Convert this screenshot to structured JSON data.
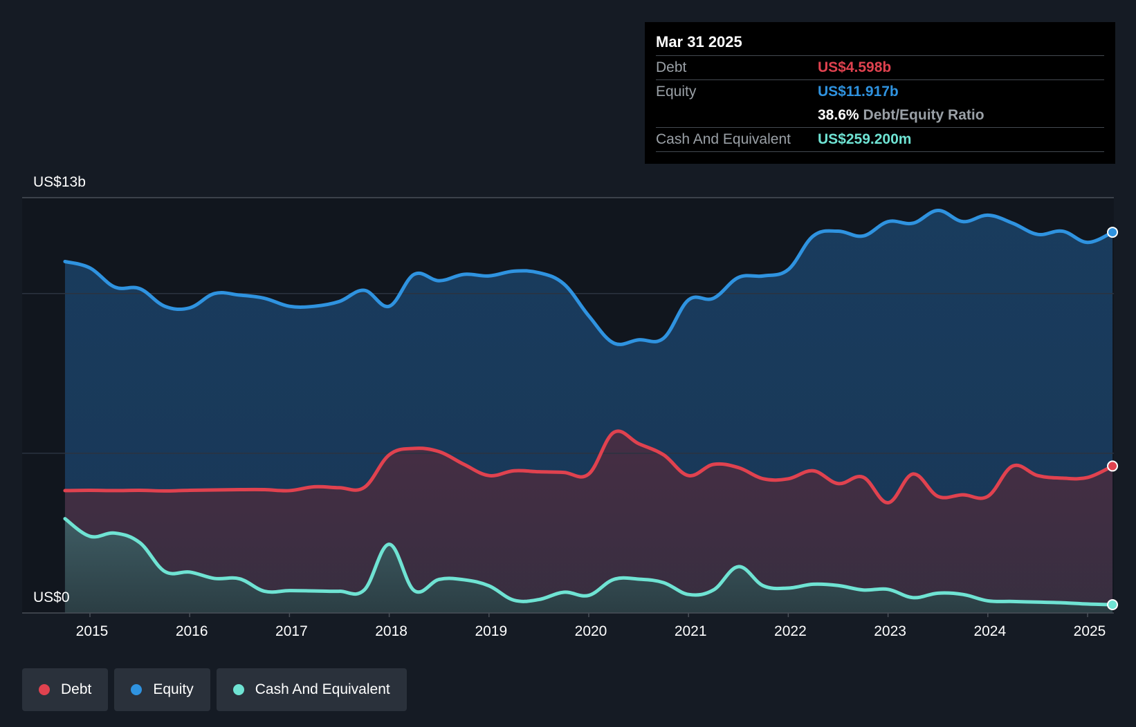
{
  "chart_data": {
    "type": "area",
    "title": "",
    "xlabel": "",
    "ylabel": "",
    "y_axis_labels": [
      "US$13b",
      "US$0"
    ],
    "ylim": [
      0,
      13
    ],
    "xlim": [
      2014.55,
      2025.25
    ],
    "x_ticks": [
      "2015",
      "2016",
      "2017",
      "2018",
      "2019",
      "2020",
      "2021",
      "2022",
      "2023",
      "2024",
      "2025"
    ],
    "gridlines": [
      0,
      5,
      10,
      13
    ],
    "series": [
      {
        "name": "Equity",
        "color": "#2f93e0",
        "points": [
          [
            2014.75,
            11.0
          ],
          [
            2015.0,
            10.8
          ],
          [
            2015.25,
            10.2
          ],
          [
            2015.5,
            10.15
          ],
          [
            2015.75,
            9.6
          ],
          [
            2016.0,
            9.55
          ],
          [
            2016.25,
            10.0
          ],
          [
            2016.5,
            9.95
          ],
          [
            2016.75,
            9.85
          ],
          [
            2017.0,
            9.6
          ],
          [
            2017.25,
            9.6
          ],
          [
            2017.5,
            9.75
          ],
          [
            2017.75,
            10.1
          ],
          [
            2018.0,
            9.6
          ],
          [
            2018.25,
            10.6
          ],
          [
            2018.5,
            10.4
          ],
          [
            2018.75,
            10.6
          ],
          [
            2019.0,
            10.55
          ],
          [
            2019.25,
            10.7
          ],
          [
            2019.5,
            10.65
          ],
          [
            2019.75,
            10.3
          ],
          [
            2020.0,
            9.3
          ],
          [
            2020.25,
            8.45
          ],
          [
            2020.5,
            8.55
          ],
          [
            2020.75,
            8.6
          ],
          [
            2021.0,
            9.8
          ],
          [
            2021.25,
            9.85
          ],
          [
            2021.5,
            10.5
          ],
          [
            2021.75,
            10.55
          ],
          [
            2022.0,
            10.75
          ],
          [
            2022.25,
            11.8
          ],
          [
            2022.5,
            11.95
          ],
          [
            2022.75,
            11.8
          ],
          [
            2023.0,
            12.25
          ],
          [
            2023.25,
            12.2
          ],
          [
            2023.5,
            12.6
          ],
          [
            2023.75,
            12.25
          ],
          [
            2024.0,
            12.45
          ],
          [
            2024.25,
            12.2
          ],
          [
            2024.5,
            11.85
          ],
          [
            2024.75,
            11.95
          ],
          [
            2025.0,
            11.6
          ],
          [
            2025.25,
            11.917
          ]
        ]
      },
      {
        "name": "Debt",
        "color": "#e0424f",
        "points": [
          [
            2014.75,
            3.83
          ],
          [
            2015.0,
            3.84
          ],
          [
            2015.25,
            3.83
          ],
          [
            2015.5,
            3.84
          ],
          [
            2015.75,
            3.82
          ],
          [
            2016.0,
            3.84
          ],
          [
            2016.25,
            3.85
          ],
          [
            2016.5,
            3.86
          ],
          [
            2016.75,
            3.86
          ],
          [
            2017.0,
            3.83
          ],
          [
            2017.25,
            3.95
          ],
          [
            2017.5,
            3.92
          ],
          [
            2017.75,
            3.93
          ],
          [
            2018.0,
            4.95
          ],
          [
            2018.25,
            5.15
          ],
          [
            2018.5,
            5.05
          ],
          [
            2018.75,
            4.65
          ],
          [
            2019.0,
            4.3
          ],
          [
            2019.25,
            4.45
          ],
          [
            2019.5,
            4.42
          ],
          [
            2019.75,
            4.4
          ],
          [
            2020.0,
            4.35
          ],
          [
            2020.25,
            5.65
          ],
          [
            2020.5,
            5.3
          ],
          [
            2020.75,
            4.95
          ],
          [
            2021.0,
            4.3
          ],
          [
            2021.25,
            4.65
          ],
          [
            2021.5,
            4.55
          ],
          [
            2021.75,
            4.2
          ],
          [
            2022.0,
            4.2
          ],
          [
            2022.25,
            4.45
          ],
          [
            2022.5,
            4.05
          ],
          [
            2022.75,
            4.25
          ],
          [
            2023.0,
            3.45
          ],
          [
            2023.25,
            4.35
          ],
          [
            2023.5,
            3.65
          ],
          [
            2023.75,
            3.7
          ],
          [
            2024.0,
            3.65
          ],
          [
            2024.25,
            4.6
          ],
          [
            2024.5,
            4.3
          ],
          [
            2024.75,
            4.22
          ],
          [
            2025.0,
            4.24
          ],
          [
            2025.25,
            4.598
          ]
        ]
      },
      {
        "name": "Cash And Equivalent",
        "color": "#6fe3d3",
        "points": [
          [
            2014.75,
            2.95
          ],
          [
            2015.0,
            2.4
          ],
          [
            2015.25,
            2.5
          ],
          [
            2015.5,
            2.2
          ],
          [
            2015.75,
            1.3
          ],
          [
            2016.0,
            1.28
          ],
          [
            2016.25,
            1.08
          ],
          [
            2016.5,
            1.07
          ],
          [
            2016.75,
            0.68
          ],
          [
            2017.0,
            0.7
          ],
          [
            2017.25,
            0.69
          ],
          [
            2017.5,
            0.68
          ],
          [
            2017.75,
            0.72
          ],
          [
            2018.0,
            2.15
          ],
          [
            2018.25,
            0.7
          ],
          [
            2018.5,
            1.05
          ],
          [
            2018.75,
            1.04
          ],
          [
            2019.0,
            0.85
          ],
          [
            2019.25,
            0.4
          ],
          [
            2019.5,
            0.42
          ],
          [
            2019.75,
            0.65
          ],
          [
            2020.0,
            0.55
          ],
          [
            2020.25,
            1.05
          ],
          [
            2020.5,
            1.06
          ],
          [
            2020.75,
            0.95
          ],
          [
            2021.0,
            0.58
          ],
          [
            2021.25,
            0.72
          ],
          [
            2021.5,
            1.45
          ],
          [
            2021.75,
            0.85
          ],
          [
            2022.0,
            0.78
          ],
          [
            2022.25,
            0.9
          ],
          [
            2022.5,
            0.86
          ],
          [
            2022.75,
            0.72
          ],
          [
            2023.0,
            0.74
          ],
          [
            2023.25,
            0.48
          ],
          [
            2023.5,
            0.62
          ],
          [
            2023.75,
            0.58
          ],
          [
            2024.0,
            0.38
          ],
          [
            2024.25,
            0.36
          ],
          [
            2024.5,
            0.34
          ],
          [
            2024.75,
            0.32
          ],
          [
            2025.0,
            0.28
          ],
          [
            2025.25,
            0.259
          ]
        ]
      }
    ]
  },
  "tooltip": {
    "date": "Mar 31 2025",
    "debt_label": "Debt",
    "debt_value": "US$4.598b",
    "equity_label": "Equity",
    "equity_value": "US$11.917b",
    "ratio_value": "38.6%",
    "ratio_label": "Debt/Equity Ratio",
    "cash_label": "Cash And Equivalent",
    "cash_value": "US$259.200m"
  },
  "legend": [
    {
      "label": "Debt",
      "color": "#e0424f"
    },
    {
      "label": "Equity",
      "color": "#2f93e0"
    },
    {
      "label": "Cash And Equivalent",
      "color": "#6fe3d3"
    }
  ]
}
